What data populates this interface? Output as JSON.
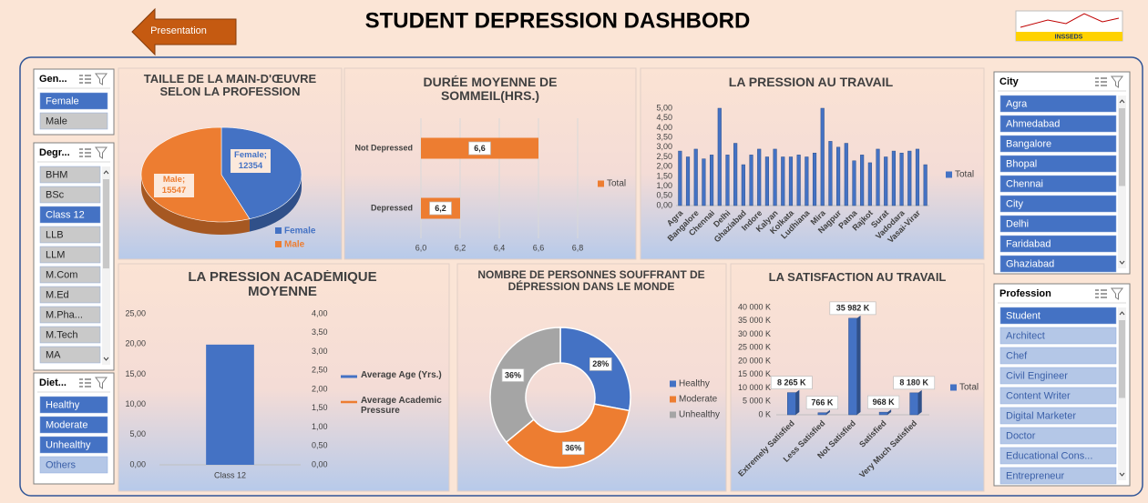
{
  "header": {
    "title": "STUDENT DEPRESSION DASHBORD",
    "button": "Presentation",
    "logo": "INSSEDS"
  },
  "slicers": [
    {
      "header": "Gen...",
      "scroll": false,
      "items": [
        {
          "label": "Female",
          "state": "selected"
        },
        {
          "label": "Male",
          "state": "unselected"
        }
      ]
    },
    {
      "header": "Degr...",
      "scroll": true,
      "items": [
        {
          "label": "BHM",
          "state": "unselected"
        },
        {
          "label": "BSc",
          "state": "unselected"
        },
        {
          "label": "Class 12",
          "state": "selected"
        },
        {
          "label": "LLB",
          "state": "unselected"
        },
        {
          "label": "LLM",
          "state": "unselected"
        },
        {
          "label": "M.Com",
          "state": "unselected"
        },
        {
          "label": "M.Ed",
          "state": "unselected"
        },
        {
          "label": "M.Pha...",
          "state": "unselected"
        },
        {
          "label": "M.Tech",
          "state": "unselected"
        },
        {
          "label": "MA",
          "state": "unselected"
        }
      ]
    },
    {
      "header": "Diet...",
      "scroll": false,
      "items": [
        {
          "label": "Healthy",
          "state": "selected"
        },
        {
          "label": "Moderate",
          "state": "selected"
        },
        {
          "label": "Unhealthy",
          "state": "selected"
        },
        {
          "label": "Others",
          "state": "no-data"
        }
      ]
    },
    {
      "header": "City",
      "scroll": true,
      "items": [
        {
          "label": "Agra",
          "state": "selected"
        },
        {
          "label": "Ahmedabad",
          "state": "selected"
        },
        {
          "label": "Bangalore",
          "state": "selected"
        },
        {
          "label": "Bhopal",
          "state": "selected"
        },
        {
          "label": "Chennai",
          "state": "selected"
        },
        {
          "label": "City",
          "state": "selected"
        },
        {
          "label": "Delhi",
          "state": "selected"
        },
        {
          "label": "Faridabad",
          "state": "selected"
        },
        {
          "label": "Ghaziabad",
          "state": "selected"
        }
      ]
    },
    {
      "header": "Profession",
      "scroll": true,
      "items": [
        {
          "label": "Student",
          "state": "selected"
        },
        {
          "label": "Architect",
          "state": "no-data"
        },
        {
          "label": "Chef",
          "state": "no-data"
        },
        {
          "label": "Civil Engineer",
          "state": "no-data"
        },
        {
          "label": "Content Writer",
          "state": "no-data"
        },
        {
          "label": "Digital Marketer",
          "state": "no-data"
        },
        {
          "label": "Doctor",
          "state": "no-data"
        },
        {
          "label": "Educational Cons...",
          "state": "no-data"
        },
        {
          "label": "Entrepreneur",
          "state": "no-data"
        }
      ]
    }
  ],
  "chart_data": [
    {
      "type": "pie",
      "title": "TAILLE DE LA MAIN-D'ŒUVRE SELON LA PROFESSION",
      "categories": [
        "Female",
        "Male"
      ],
      "values": [
        12354,
        15547
      ],
      "value_labels": [
        "Female; 12354",
        "Male; 15547"
      ],
      "colors": [
        "#4472c4",
        "#ed7d31"
      ],
      "legend": "bottom-right"
    },
    {
      "type": "bar",
      "orientation": "horizontal",
      "title": "DURÉE MOYENNE DE SOMMEIL(HRS.)",
      "categories": [
        "Not Depressed",
        "Depressed"
      ],
      "series": [
        {
          "name": "Total",
          "color": "#ed7d31",
          "values": [
            6.6,
            6.2
          ],
          "value_labels": [
            "6,6",
            "6,2"
          ]
        }
      ],
      "xlim": [
        6.0,
        6.8
      ],
      "xticks": [
        {
          "value": 6.0,
          "label": "6,0"
        },
        {
          "value": 6.2,
          "label": "6,2"
        },
        {
          "value": 6.4,
          "label": "6,4"
        },
        {
          "value": 6.6,
          "label": "6,6"
        },
        {
          "value": 6.8,
          "label": "6,8"
        }
      ],
      "grid": true,
      "legend": "right"
    },
    {
      "type": "bar",
      "title": "LA PRESSION AU TRAVAIL",
      "categories": [
        "Agra",
        null,
        "Bangalore",
        null,
        "Chennai",
        null,
        "Delhi",
        null,
        "Ghaziabad",
        null,
        "Indore",
        null,
        "Kalyan",
        null,
        "Kolkata",
        null,
        "Ludhiana",
        null,
        "Mira",
        null,
        "Nagpur",
        null,
        "Patna",
        null,
        "Rajkot",
        null,
        "Surat",
        null,
        "Vadodara",
        null,
        "Vasai-Virar",
        null
      ],
      "series": [
        {
          "name": "Total",
          "color": "#4472c4",
          "values": [
            2.8,
            2.5,
            2.9,
            2.4,
            2.6,
            5.0,
            2.6,
            3.2,
            2.1,
            2.6,
            2.9,
            2.5,
            2.9,
            2.5,
            2.5,
            2.6,
            2.5,
            2.7,
            5.0,
            3.3,
            3.0,
            3.2,
            2.3,
            2.6,
            2.2,
            2.9,
            2.5,
            2.8,
            2.7,
            2.8,
            2.9,
            2.1
          ]
        }
      ],
      "ylim": [
        0,
        5
      ],
      "yticks": [
        {
          "value": 0,
          "label": "0,00"
        },
        {
          "value": 0.5,
          "label": "0,50"
        },
        {
          "value": 1,
          "label": "1,00"
        },
        {
          "value": 1.5,
          "label": "1,50"
        },
        {
          "value": 2,
          "label": "2,00"
        },
        {
          "value": 2.5,
          "label": "2,50"
        },
        {
          "value": 3,
          "label": "3,00"
        },
        {
          "value": 3.5,
          "label": "3,50"
        },
        {
          "value": 4,
          "label": "4,00"
        },
        {
          "value": 4.5,
          "label": "4,50"
        },
        {
          "value": 5,
          "label": "5,00"
        }
      ],
      "grid": false,
      "legend": "right"
    },
    {
      "type": "combo",
      "title": "LA PRESSION ACADÉMIQUE MOYENNE",
      "categories": [
        "Class 12"
      ],
      "series": [
        {
          "name": "Average Age (Yrs.)",
          "color": "#4472c4",
          "type": "bar",
          "values": [
            19.9
          ]
        },
        {
          "name": "Average Academic Pressure",
          "color": "#ed7d31",
          "type": "line",
          "axis": "y2",
          "values": [
            3.2
          ]
        }
      ],
      "ylim": [
        0,
        25
      ],
      "yticks": [
        {
          "value": 0,
          "label": "0,00"
        },
        {
          "value": 5,
          "label": "5,00"
        },
        {
          "value": 10,
          "label": "10,00"
        },
        {
          "value": 15,
          "label": "15,00"
        },
        {
          "value": 20,
          "label": "20,00"
        },
        {
          "value": 25,
          "label": "25,00"
        }
      ],
      "y2lim": [
        0,
        4
      ],
      "y2ticks": [
        {
          "value": 0,
          "label": "0,00"
        },
        {
          "value": 0.5,
          "label": "0,50"
        },
        {
          "value": 1,
          "label": "1,00"
        },
        {
          "value": 1.5,
          "label": "1,50"
        },
        {
          "value": 2,
          "label": "2,00"
        },
        {
          "value": 2.5,
          "label": "2,50"
        },
        {
          "value": 3,
          "label": "3,00"
        },
        {
          "value": 3.5,
          "label": "3,50"
        },
        {
          "value": 4,
          "label": "4,00"
        }
      ],
      "legend": "right"
    },
    {
      "type": "donut",
      "title": "NOMBRE DE PERSONNES SOUFFRANT DE DÉPRESSION DANS LE MONDE",
      "categories": [
        "Healthy",
        "Moderate",
        "Unhealthy"
      ],
      "values": [
        28,
        36,
        36
      ],
      "value_labels": [
        "28%",
        "36%",
        "36%"
      ],
      "colors": [
        "#4472c4",
        "#ed7d31",
        "#a5a5a5"
      ],
      "legend": "right"
    },
    {
      "type": "bar",
      "title": "LA SATISFACTION AU TRAVAIL",
      "categories": [
        "Extremely Satisfied",
        "Less Satisfied",
        "Not Satisfied",
        "Satisfied",
        "Very Much Satisfied"
      ],
      "series": [
        {
          "name": "Total",
          "color": "#4472c4",
          "values": [
            8265,
            766,
            35982,
            968,
            8180
          ],
          "value_labels": [
            "8 265 K",
            "766 K",
            "35 982 K",
            "968 K",
            "8 180 K"
          ]
        }
      ],
      "ylim": [
        0,
        40000
      ],
      "yticks": [
        {
          "value": 0,
          "label": "0 K"
        },
        {
          "value": 5000,
          "label": "5 000 K"
        },
        {
          "value": 10000,
          "label": "10 000 K"
        },
        {
          "value": 15000,
          "label": "15 000 K"
        },
        {
          "value": 20000,
          "label": "20 000 K"
        },
        {
          "value": 25000,
          "label": "25 000 K"
        },
        {
          "value": 30000,
          "label": "30 000 K"
        },
        {
          "value": 35000,
          "label": "35 000 K"
        },
        {
          "value": 40000,
          "label": "40 000 K"
        }
      ],
      "grid": false,
      "legend": "right"
    }
  ]
}
